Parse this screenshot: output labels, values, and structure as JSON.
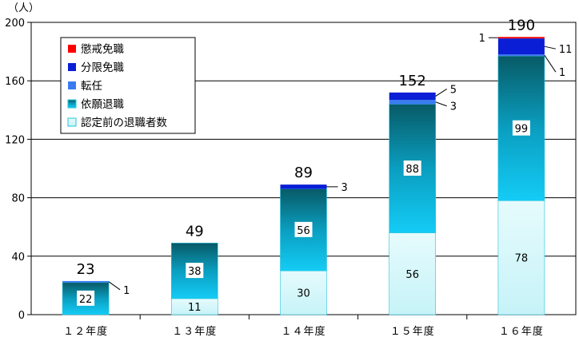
{
  "chart_data": {
    "type": "bar",
    "stacked": true,
    "unit_label": "（人）",
    "ylim": [
      0,
      200
    ],
    "yticks": [
      "0",
      "40",
      "80",
      "120",
      "160",
      "200"
    ],
    "grid": true,
    "legend_position": "top-left",
    "categories": [
      "１２年度",
      "１３年度",
      "１４年度",
      "１５年度",
      "１６年度"
    ],
    "series": [
      {
        "name": "認定前の退職者数",
        "color": "#ccf6fa",
        "values": [
          0,
          11,
          30,
          56,
          78
        ]
      },
      {
        "name": "依願退職",
        "color": "#0aa9c8",
        "values": [
          22,
          38,
          56,
          88,
          99
        ]
      },
      {
        "name": "転任",
        "color": "#3a7cf0",
        "values": [
          1,
          0,
          0,
          3,
          1
        ]
      },
      {
        "name": "分限免職",
        "color": "#0a1ed6",
        "values": [
          0,
          0,
          3,
          5,
          11
        ]
      },
      {
        "name": "懲戒免職",
        "color": "#ff0000",
        "values": [
          0,
          0,
          0,
          0,
          1
        ]
      }
    ],
    "totals": [
      23,
      49,
      89,
      152,
      190
    ],
    "segment_labels": [
      {
        "category": 0,
        "series": 1,
        "text": "22"
      },
      {
        "category": 1,
        "series": 0,
        "text": "11"
      },
      {
        "category": 1,
        "series": 1,
        "text": "38"
      },
      {
        "category": 2,
        "series": 0,
        "text": "30"
      },
      {
        "category": 2,
        "series": 1,
        "text": "56"
      },
      {
        "category": 3,
        "series": 0,
        "text": "56"
      },
      {
        "category": 3,
        "series": 1,
        "text": "88"
      },
      {
        "category": 4,
        "series": 0,
        "text": "78"
      },
      {
        "category": 4,
        "series": 1,
        "text": "99"
      }
    ],
    "callouts": [
      {
        "category": 0,
        "series": 2,
        "side": "right",
        "text": "1"
      },
      {
        "category": 2,
        "series": 3,
        "side": "right",
        "text": "3"
      },
      {
        "category": 3,
        "series": 2,
        "side": "right",
        "text": "3"
      },
      {
        "category": 3,
        "series": 3,
        "side": "right",
        "text": "5"
      },
      {
        "category": 4,
        "series": 2,
        "side": "right",
        "text": "1"
      },
      {
        "category": 4,
        "series": 3,
        "side": "right",
        "text": "11"
      },
      {
        "category": 4,
        "series": 4,
        "side": "left",
        "text": "1"
      }
    ]
  }
}
